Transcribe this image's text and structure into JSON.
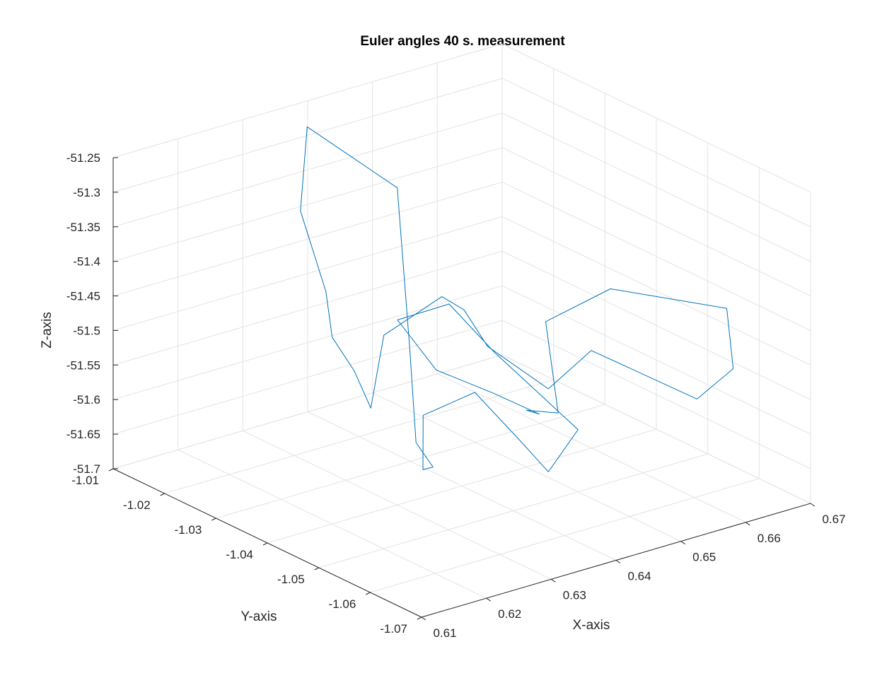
{
  "chart_data": {
    "type": "line",
    "title": "Euler angles 40 s. measurement",
    "xlabel": "X-axis",
    "ylabel": "Y-axis",
    "zlabel": "Z-axis",
    "xlim": [
      0.61,
      0.67
    ],
    "ylim": [
      -1.07,
      -1.01
    ],
    "zlim": [
      -51.7,
      -51.25
    ],
    "xticks": [
      "0.61",
      "0.62",
      "0.63",
      "0.64",
      "0.65",
      "0.66",
      "0.67"
    ],
    "yticks": [
      "-1.01",
      "-1.02",
      "-1.03",
      "-1.04",
      "-1.05",
      "-1.06",
      "-1.07"
    ],
    "zticks": [
      "-51.25",
      "-51.3",
      "-51.35",
      "-51.4",
      "-51.45",
      "-51.5",
      "-51.55",
      "-51.6",
      "-51.65",
      "-51.7"
    ],
    "grid": true,
    "view": "3d",
    "series_color": "#0072bd",
    "series": [
      {
        "x": [
          0.639,
          0.645,
          0.655,
          0.665,
          0.666,
          0.662,
          0.656,
          0.647,
          0.64,
          0.634,
          0.629,
          0.624,
          0.622,
          0.621,
          0.62,
          0.623,
          0.627,
          0.632,
          0.634,
          0.628,
          0.625,
          0.63,
          0.634,
          0.638,
          0.642,
          0.645,
          0.647,
          0.65,
          0.645,
          0.642,
          0.638,
          0.64,
          0.645,
          0.648,
          0.642,
          0.639
        ],
        "y": [
          -1.06,
          -1.05,
          -1.05,
          -1.06,
          -1.06,
          -1.058,
          -1.045,
          -1.048,
          -1.045,
          -1.048,
          -1.05,
          -1.045,
          -1.045,
          -1.043,
          -1.04,
          -1.035,
          -1.025,
          -1.02,
          -1.035,
          -1.045,
          -1.05,
          -1.047,
          -1.04,
          -1.035,
          -1.04,
          -1.045,
          -1.048,
          -1.05,
          -1.04,
          -1.035,
          -1.03,
          -1.035,
          -1.04,
          -1.045,
          -1.05,
          -1.06
        ],
        "z": [
          -51.52,
          -51.44,
          -51.42,
          -51.44,
          -51.53,
          -51.57,
          -51.53,
          -51.55,
          -51.48,
          -51.4,
          -51.36,
          -51.42,
          -51.52,
          -51.47,
          -51.43,
          -51.39,
          -51.32,
          -51.23,
          -51.27,
          -51.45,
          -51.56,
          -51.62,
          -51.66,
          -51.61,
          -51.57,
          -51.63,
          -51.67,
          -51.61,
          -51.52,
          -51.46,
          -51.49,
          -51.55,
          -51.58,
          -51.6,
          -51.56,
          -51.52
        ]
      }
    ]
  }
}
